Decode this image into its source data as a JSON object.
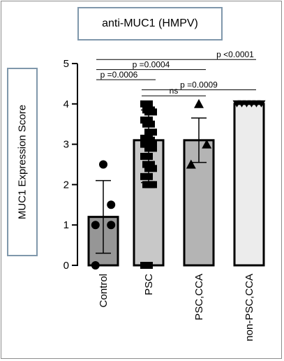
{
  "chart_data": {
    "type": "bar",
    "title": "anti-MUC1 (HMPV)",
    "ylabel": "MUC1 Expression Score",
    "xlabel": "",
    "ylim": [
      0,
      5
    ],
    "yticks": [
      "0",
      "1",
      "2",
      "3",
      "4",
      "5"
    ],
    "categories": [
      "Control",
      "PSC",
      "PSC,CCA",
      "non-PSC,CCA"
    ],
    "values": [
      1.2,
      3.1,
      3.1,
      4.0
    ],
    "errors": [
      {
        "low": 0.3,
        "high": 2.1
      },
      {
        "low": 2.05,
        "high": 3.85
      },
      {
        "low": 2.55,
        "high": 3.65
      },
      {
        "low": 4.0,
        "high": 4.0
      }
    ],
    "bar_colors": [
      "#969696",
      "#c8c8c8",
      "#b4b4b4",
      "#ececec"
    ],
    "markers": [
      "circle",
      "square",
      "triangle",
      "triangle-down"
    ],
    "points": [
      [
        2.5,
        1.5,
        1.0,
        1.0,
        0.0
      ],
      [
        4.0,
        3.85,
        3.8,
        3.6,
        3.5,
        3.3,
        3.15,
        3.1,
        3.0,
        3.0,
        3.0,
        2.9,
        2.7,
        2.5,
        2.4,
        2.2,
        2.0,
        2.0,
        0.0
      ],
      [
        4.0,
        3.0,
        2.5
      ],
      [
        4.0,
        4.0,
        4.0,
        4.0,
        4.0,
        4.0
      ]
    ],
    "comparisons": [
      {
        "from": 0,
        "to": 3,
        "y": 5.1,
        "label": "p <0.0001"
      },
      {
        "from": 0,
        "to": 2,
        "y": 4.85,
        "label": "p =0.0004"
      },
      {
        "from": 0,
        "to": 1,
        "y": 4.6,
        "label": "p =0.0006"
      },
      {
        "from": 1,
        "to": 3,
        "y": 4.35,
        "label": "p =0.0009"
      },
      {
        "from": 1,
        "to": 2,
        "y": 4.2,
        "label": "ns"
      }
    ]
  }
}
